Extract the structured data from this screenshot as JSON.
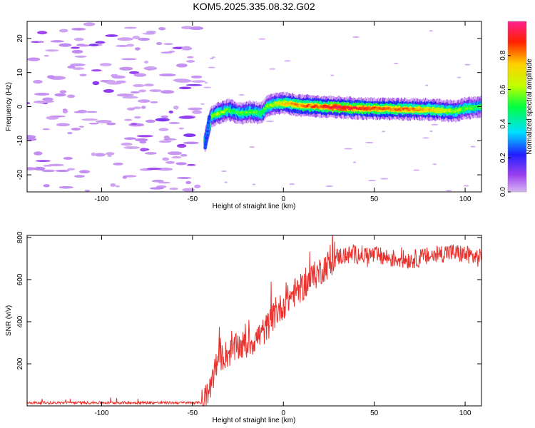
{
  "title": "KOM5.2025.335.08.32.G02",
  "chart_data": [
    {
      "type": "heatmap",
      "xlabel": "Height of straight line (km)",
      "ylabel": "Frequency (Hz)",
      "xlim": [
        -141,
        109
      ],
      "ylim": [
        -25,
        25
      ],
      "xticks": [
        -100,
        -50,
        0,
        50,
        100
      ],
      "yticks": [
        -20,
        -10,
        0,
        10,
        20
      ],
      "colorbar": {
        "label": "Normalized spectral amplitude",
        "range": [
          0,
          1
        ],
        "ticks": [
          "0.0",
          "0.2",
          "0.4",
          "0.6",
          "0.8"
        ]
      },
      "ridge": [
        {
          "x": -43,
          "y": -10,
          "a": 0.45
        },
        {
          "x": -41,
          "y": -6,
          "a": 0.5
        },
        {
          "x": -40,
          "y": -3,
          "a": 0.55
        },
        {
          "x": -36,
          "y": -2,
          "a": 0.6
        },
        {
          "x": -30,
          "y": -1,
          "a": 0.55
        },
        {
          "x": -24,
          "y": -2,
          "a": 0.5
        },
        {
          "x": -18,
          "y": -1.5,
          "a": 0.55
        },
        {
          "x": -12,
          "y": -2,
          "a": 0.5
        },
        {
          "x": -9,
          "y": 0,
          "a": 0.55
        },
        {
          "x": -5,
          "y": 0.8,
          "a": 0.6
        },
        {
          "x": 0,
          "y": 1,
          "a": 0.75
        },
        {
          "x": 10,
          "y": 0.3,
          "a": 0.8
        },
        {
          "x": 20,
          "y": 0,
          "a": 0.85
        },
        {
          "x": 30,
          "y": -0.2,
          "a": 0.95
        },
        {
          "x": 40,
          "y": -0.5,
          "a": 0.9
        },
        {
          "x": 50,
          "y": -0.6,
          "a": 0.85
        },
        {
          "x": 60,
          "y": -0.7,
          "a": 0.8
        },
        {
          "x": 70,
          "y": -0.8,
          "a": 0.8
        },
        {
          "x": 80,
          "y": -0.8,
          "a": 0.75
        },
        {
          "x": 88,
          "y": -1.2,
          "a": 0.65
        },
        {
          "x": 95,
          "y": -1.3,
          "a": 0.6
        },
        {
          "x": 100,
          "y": -0.5,
          "a": 0.55
        },
        {
          "x": 109,
          "y": 0,
          "a": 0.5
        }
      ],
      "noise_region_x": [
        -141,
        -45
      ],
      "noise_blob_count": 190
    },
    {
      "type": "line",
      "xlabel": "Height of straight line (km)",
      "ylabel": "SNR (v/v)",
      "xlim": [
        -141,
        109
      ],
      "ylim": [
        0,
        810
      ],
      "xticks": [
        -100,
        -50,
        0,
        50,
        100
      ],
      "yticks": [
        200,
        400,
        600,
        800
      ],
      "series": [
        {
          "name": "SNR",
          "color": "#e8302c",
          "profile": [
            {
              "x": -141,
              "y": 15
            },
            {
              "x": -45,
              "y": 15
            },
            {
              "x": -42,
              "y": 45
            },
            {
              "x": -38,
              "y": 160
            },
            {
              "x": -35,
              "y": 230
            },
            {
              "x": -30,
              "y": 250
            },
            {
              "x": -25,
              "y": 280
            },
            {
              "x": -20,
              "y": 290
            },
            {
              "x": -15,
              "y": 320
            },
            {
              "x": -10,
              "y": 360
            },
            {
              "x": -5,
              "y": 430
            },
            {
              "x": 0,
              "y": 480
            },
            {
              "x": 5,
              "y": 530
            },
            {
              "x": 10,
              "y": 560
            },
            {
              "x": 15,
              "y": 600
            },
            {
              "x": 20,
              "y": 640
            },
            {
              "x": 25,
              "y": 675
            },
            {
              "x": 30,
              "y": 710
            },
            {
              "x": 40,
              "y": 720
            },
            {
              "x": 50,
              "y": 715
            },
            {
              "x": 60,
              "y": 700
            },
            {
              "x": 70,
              "y": 695
            },
            {
              "x": 80,
              "y": 710
            },
            {
              "x": 90,
              "y": 730
            },
            {
              "x": 100,
              "y": 720
            },
            {
              "x": 109,
              "y": 700
            }
          ],
          "noise_amplitude": {
            "flat": 6,
            "rise": 70,
            "plateau": 45
          }
        }
      ]
    }
  ]
}
